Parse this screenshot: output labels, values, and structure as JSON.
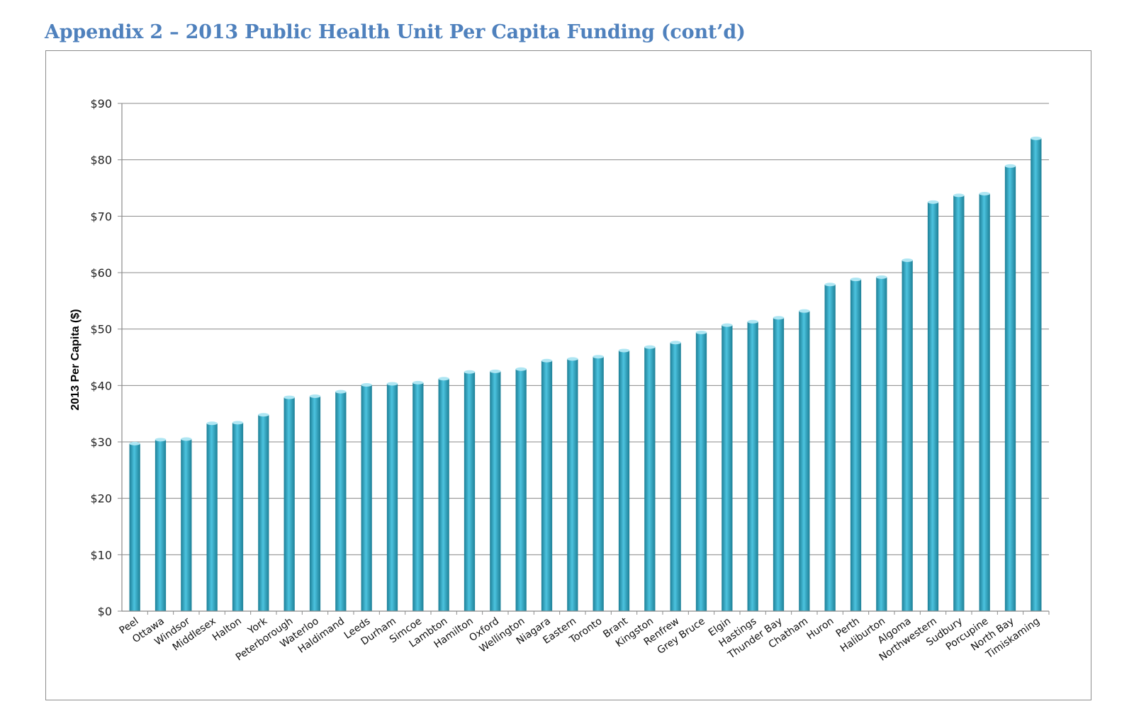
{
  "page": {
    "title": "Appendix 2 – 2013 Public Health Unit Per Capita Funding (cont’d)"
  },
  "colors": {
    "title": "#4f81bd",
    "bar_dark": "#1d7f96",
    "bar_light": "#4cc3df",
    "bar_top": "#aee6f3",
    "grid": "#8a8a8a",
    "frame": "#8c8c8c"
  },
  "chart_data": {
    "type": "bar",
    "title": "",
    "xlabel": "",
    "ylabel": "2013 Per Capita ($)",
    "ylim": [
      0,
      90
    ],
    "yticks": [
      0,
      10,
      20,
      30,
      40,
      50,
      60,
      70,
      80,
      90
    ],
    "ytick_labels": [
      "$0",
      "$10",
      "$20",
      "$30",
      "$40",
      "$50",
      "$60",
      "$70",
      "$80",
      "$90"
    ],
    "grid": true,
    "legend": "none",
    "categories": [
      "Peel",
      "Ottawa",
      "Windsor",
      "Middlesex",
      "Halton",
      "York",
      "Peterborough",
      "Waterloo",
      "Haldimand",
      "Leeds",
      "Durham",
      "Simcoe",
      "Lambton",
      "Hamilton",
      "Oxford",
      "Wellington",
      "Niagara",
      "Eastern",
      "Toronto",
      "Brant",
      "Kingston",
      "Renfrew",
      "Grey Bruce",
      "Elgin",
      "Hastings",
      "Thunder Bay",
      "Chatham",
      "Huron",
      "Perth",
      "Haliburton",
      "Algoma",
      "Northwestern",
      "Sudbury",
      "Porcupine",
      "North Bay",
      "Timiskaming"
    ],
    "values": [
      29.7,
      30.4,
      30.5,
      33.3,
      33.4,
      34.8,
      37.9,
      38.1,
      38.9,
      40.1,
      40.3,
      40.5,
      41.2,
      42.4,
      42.5,
      42.9,
      44.4,
      44.7,
      45.1,
      46.2,
      46.8,
      47.6,
      49.4,
      50.7,
      51.3,
      52.0,
      53.2,
      57.9,
      58.8,
      59.2,
      62.2,
      72.5,
      73.7,
      74.0,
      78.9,
      83.8
    ]
  }
}
